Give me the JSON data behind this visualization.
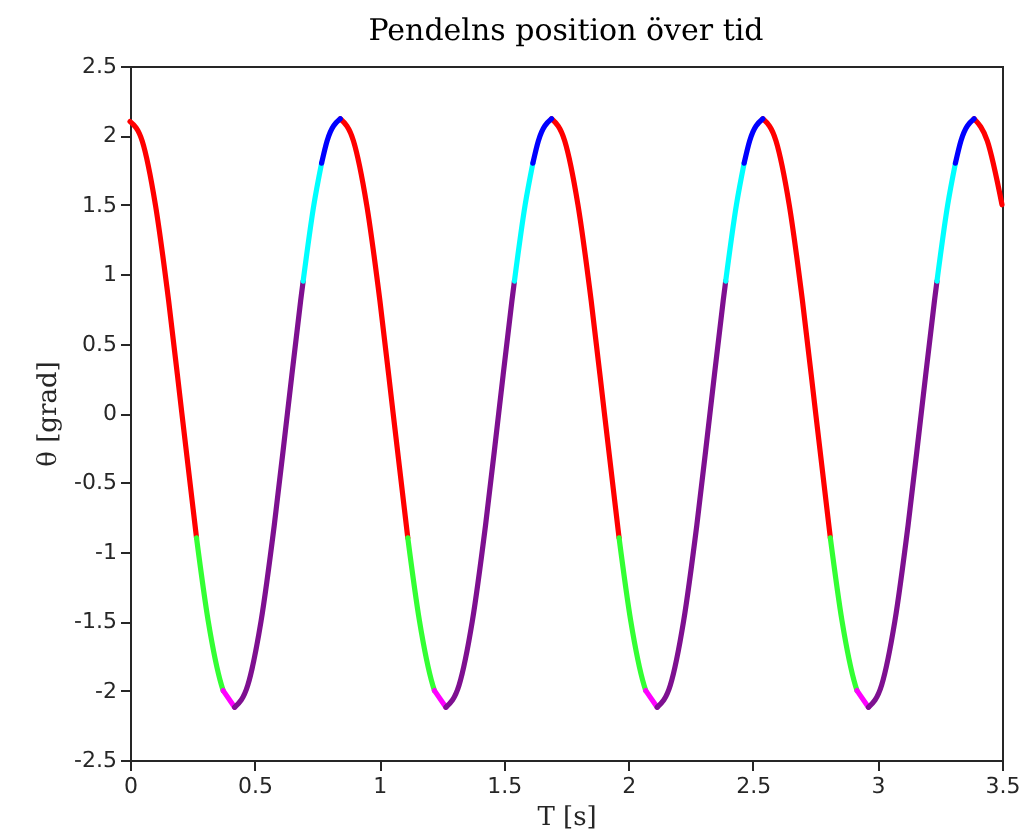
{
  "chart_data": {
    "type": "line",
    "title": "Pendelns position över tid",
    "xlabel": "T [s]",
    "ylabel": "θ [grad]",
    "xlim": [
      0,
      3.5
    ],
    "xticks": [
      0,
      0.5,
      1,
      1.5,
      2,
      2.5,
      3,
      3.5
    ],
    "ylim": [
      -2.5,
      2.5
    ],
    "yticks": [
      -2.5,
      -2,
      -1.5,
      -1,
      -0.5,
      0,
      0.5,
      1,
      1.5,
      2,
      2.5
    ],
    "grid": false,
    "line_style": "solid",
    "marker": "none",
    "series": [
      {
        "color": "#ff0000",
        "x": [
          0,
          0.049,
          0.102,
          0.155,
          0.208,
          0.267,
          0.5,
          0.844,
          0.897,
          0.95,
          1.003,
          1.056,
          1.115,
          1.4,
          1.692,
          1.745,
          1.798,
          1.851,
          1.904,
          1.963,
          2.3,
          2.54,
          2.593,
          2.646,
          2.699,
          2.752,
          2.811,
          3.1,
          3.388,
          3.441,
          3.5
        ],
        "values": [
          2.1,
          1.96,
          1.5,
          0.81,
          0,
          -0.9,
          null,
          2.12,
          1.96,
          1.5,
          0.81,
          0,
          -0.9,
          null,
          2.12,
          1.96,
          1.5,
          0.81,
          0,
          -0.9,
          null,
          2.12,
          1.96,
          1.5,
          0.81,
          0,
          -0.9,
          null,
          2.12,
          1.96,
          1.5
        ]
      },
      {
        "color": "#33ff33",
        "x": [
          0.267,
          0.314,
          0.367,
          0.374,
          0.7,
          1.115,
          1.162,
          1.215,
          1.222,
          1.6,
          1.963,
          2.01,
          2.063,
          2.07,
          2.4,
          2.811,
          2.858,
          2.911,
          2.918
        ],
        "values": [
          -0.9,
          -1.5,
          -1.96,
          -2.0,
          null,
          -0.9,
          -1.5,
          -1.96,
          -2.0,
          null,
          -0.9,
          -1.5,
          -1.96,
          -2.0,
          null,
          -0.9,
          -1.5,
          -1.96,
          -2.0
        ]
      },
      {
        "color": "#ff00ff",
        "x": [
          0.374,
          0.42,
          0.8,
          1.222,
          1.268,
          1.6,
          2.07,
          2.116,
          2.5,
          2.918,
          2.964
        ],
        "values": [
          -2.0,
          -2.12,
          null,
          -2.0,
          -2.12,
          null,
          -2.0,
          -2.12,
          null,
          -2.0,
          -2.12
        ]
      },
      {
        "color": "#7e1090",
        "x": [
          0.42,
          0.473,
          0.526,
          0.579,
          0.632,
          0.685,
          0.695,
          1.0,
          1.268,
          1.321,
          1.374,
          1.427,
          1.48,
          1.533,
          1.543,
          1.9,
          2.116,
          2.169,
          2.222,
          2.275,
          2.328,
          2.381,
          2.391,
          2.7,
          2.964,
          3.017,
          3.07,
          3.123,
          3.176,
          3.229,
          3.239
        ],
        "values": [
          -2.12,
          -1.96,
          -1.5,
          -0.81,
          0,
          0.81,
          0.95,
          null,
          -2.12,
          -1.96,
          -1.5,
          -0.81,
          0,
          0.81,
          0.95,
          null,
          -2.12,
          -1.96,
          -1.5,
          -0.81,
          0,
          0.81,
          0.95,
          null,
          -2.12,
          -1.96,
          -1.5,
          -0.81,
          0,
          0.81,
          0.95
        ]
      },
      {
        "color": "#00ffff",
        "x": [
          0.695,
          0.738,
          0.769,
          1.2,
          1.543,
          1.586,
          1.617,
          2.0,
          2.391,
          2.434,
          2.465,
          2.9,
          3.239,
          3.282,
          3.313
        ],
        "values": [
          0.95,
          1.5,
          1.8,
          null,
          0.95,
          1.5,
          1.8,
          null,
          0.95,
          1.5,
          1.8,
          null,
          0.95,
          1.5,
          1.8
        ]
      },
      {
        "color": "#0000ff",
        "x": [
          0.769,
          0.791,
          0.844,
          1.2,
          1.617,
          1.639,
          1.692,
          2.0,
          2.465,
          2.487,
          2.54,
          2.9,
          3.313,
          3.335,
          3.388
        ],
        "values": [
          1.8,
          1.96,
          2.12,
          null,
          1.8,
          1.96,
          2.12,
          null,
          1.8,
          1.96,
          2.12,
          null,
          1.8,
          1.96,
          2.12
        ]
      }
    ]
  }
}
